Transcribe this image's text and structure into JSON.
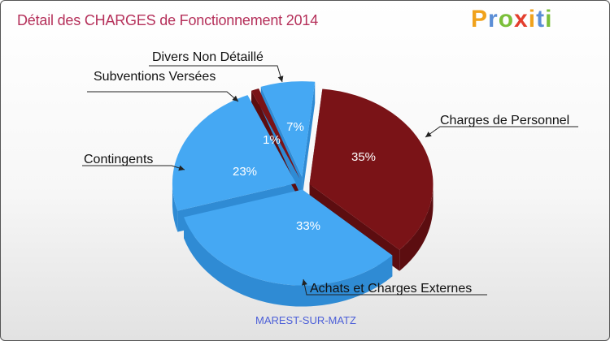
{
  "title": "Détail des CHARGES de Fonctionnement 2014",
  "logo": {
    "letters": [
      "P",
      "r",
      "o",
      "x",
      "i",
      "t",
      "i"
    ],
    "colors": [
      "#f0a21c",
      "#5b8ed6",
      "#7bbf3a",
      "#e33e2d",
      "#f0a21c",
      "#5b8ed6",
      "#7bbf3a"
    ]
  },
  "city": "MAREST-SUR-MATZ",
  "chart_data": {
    "type": "pie",
    "title": "Détail des CHARGES de Fonctionnement 2014",
    "slices": [
      {
        "name": "Charges de Personnel",
        "value": 35,
        "label": "35%",
        "color": "#7a1317",
        "side": "#5c0d10"
      },
      {
        "name": "Achats et Charges Externes",
        "value": 33,
        "label": "33%",
        "color": "#45a8f3",
        "side": "#2f8bd4"
      },
      {
        "name": "Contingents",
        "value": 23,
        "label": "23%",
        "color": "#45a8f3",
        "side": "#2f8bd4"
      },
      {
        "name": "Subventions Versées",
        "value": 1,
        "label": "1%",
        "color": "#7a1317",
        "side": "#5c0d10"
      },
      {
        "name": "Divers Non Détaillé",
        "value": 7,
        "label": "7%",
        "color": "#45a8f3",
        "side": "#2f8bd4"
      }
    ]
  }
}
